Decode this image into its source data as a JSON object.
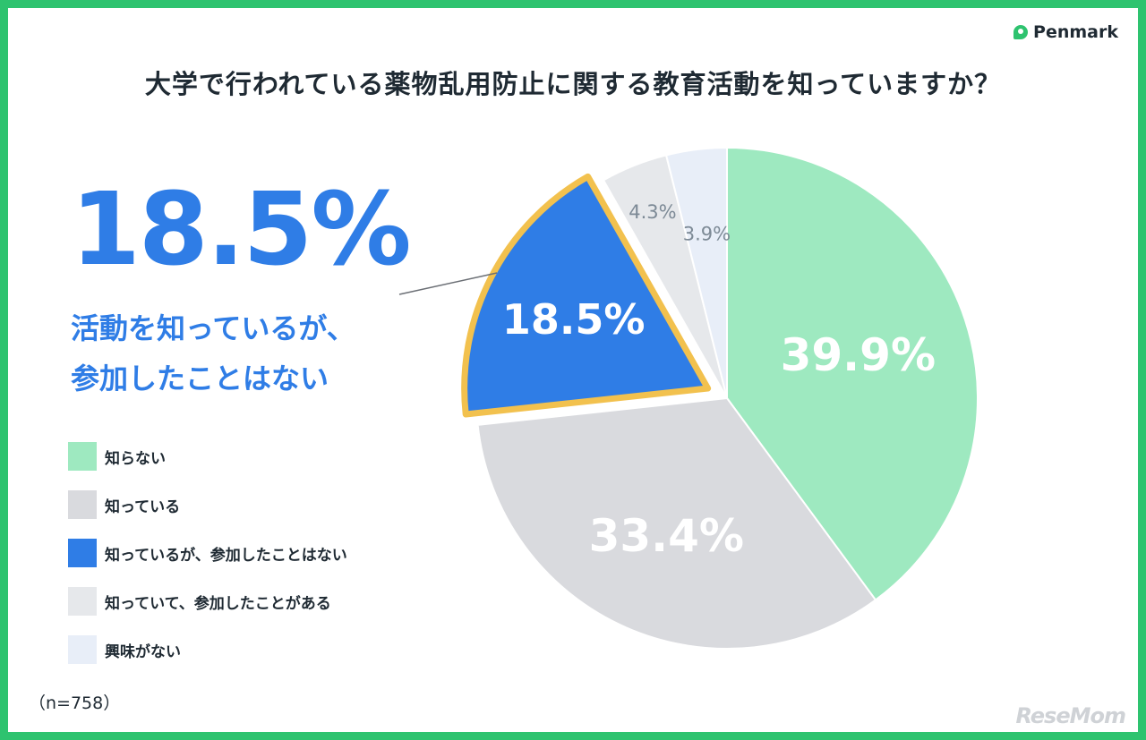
{
  "brand": {
    "logo_text": "Penmark",
    "logo_color": "#2ec36f"
  },
  "header": {
    "title": "大学で行われている薬物乱用防止に関する教育活動を知っていますか？"
  },
  "highlight": {
    "value": "18.5%",
    "line1": "活動を知っているが、",
    "line2": "参加したことはない",
    "color": "#2f7de6"
  },
  "chart_data": {
    "type": "pie",
    "start": "12 o'clock, clockwise",
    "slices": [
      {
        "label": "知らない",
        "value": 39.9,
        "display": "39.9%",
        "color": "#9ee9c0"
      },
      {
        "label": "知っている",
        "value": 33.4,
        "display": "33.4%",
        "color": "#d9dade"
      },
      {
        "label": "知っているが、参加したことはない",
        "value": 18.5,
        "display": "18.5%",
        "color": "#2f7de6",
        "highlighted": true,
        "outline": "#f2c14e"
      },
      {
        "label": "知っていて、参加したことがある",
        "value": 4.3,
        "display": "4.3%",
        "color": "#e6e8eb"
      },
      {
        "label": "興味がない",
        "value": 3.9,
        "display": "3.9%",
        "color": "#e8eef8"
      }
    ]
  },
  "legend": [
    {
      "label": "知らない",
      "color": "#9ee9c0"
    },
    {
      "label": "知っている",
      "color": "#d9dade"
    },
    {
      "label": "知っているが、参加したことはない",
      "color": "#2f7de6"
    },
    {
      "label": "知っていて、参加したことがある",
      "color": "#e6e8eb"
    },
    {
      "label": "興味がない",
      "color": "#e8eef8"
    }
  ],
  "footer": {
    "sample_size": "（n=758）",
    "watermark": "ReseMom"
  }
}
